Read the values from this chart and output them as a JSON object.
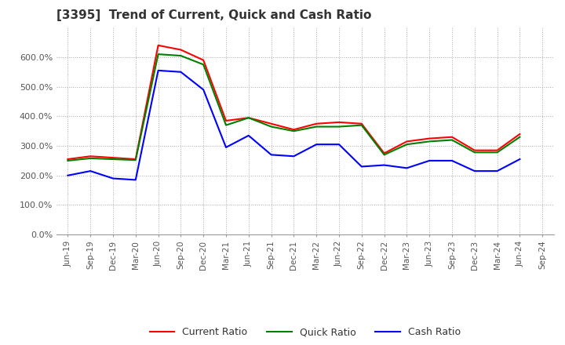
{
  "title": "[3395]  Trend of Current, Quick and Cash Ratio",
  "x_labels": [
    "Jun-19",
    "Sep-19",
    "Dec-19",
    "Mar-20",
    "Jun-20",
    "Sep-20",
    "Dec-20",
    "Mar-21",
    "Jun-21",
    "Sep-21",
    "Dec-21",
    "Mar-22",
    "Jun-22",
    "Sep-22",
    "Dec-22",
    "Mar-23",
    "Jun-23",
    "Sep-23",
    "Dec-23",
    "Mar-24",
    "Jun-24",
    "Sep-24"
  ],
  "current_ratio": [
    255,
    265,
    260,
    255,
    640,
    625,
    590,
    385,
    395,
    375,
    355,
    375,
    380,
    375,
    275,
    315,
    325,
    330,
    285,
    285,
    340,
    null
  ],
  "quick_ratio": [
    250,
    258,
    255,
    252,
    610,
    605,
    575,
    370,
    395,
    365,
    350,
    365,
    365,
    370,
    270,
    305,
    315,
    320,
    278,
    278,
    330,
    null
  ],
  "cash_ratio": [
    200,
    215,
    190,
    185,
    555,
    550,
    490,
    295,
    335,
    270,
    265,
    305,
    305,
    230,
    235,
    225,
    250,
    250,
    215,
    215,
    255,
    null
  ],
  "current_color": "#ff0000",
  "quick_color": "#008000",
  "cash_color": "#0000ff",
  "ylim": [
    0,
    700
  ],
  "yticks": [
    0,
    100,
    200,
    300,
    400,
    500,
    600
  ],
  "background_color": "#ffffff",
  "grid_color": "#aaaaaa"
}
